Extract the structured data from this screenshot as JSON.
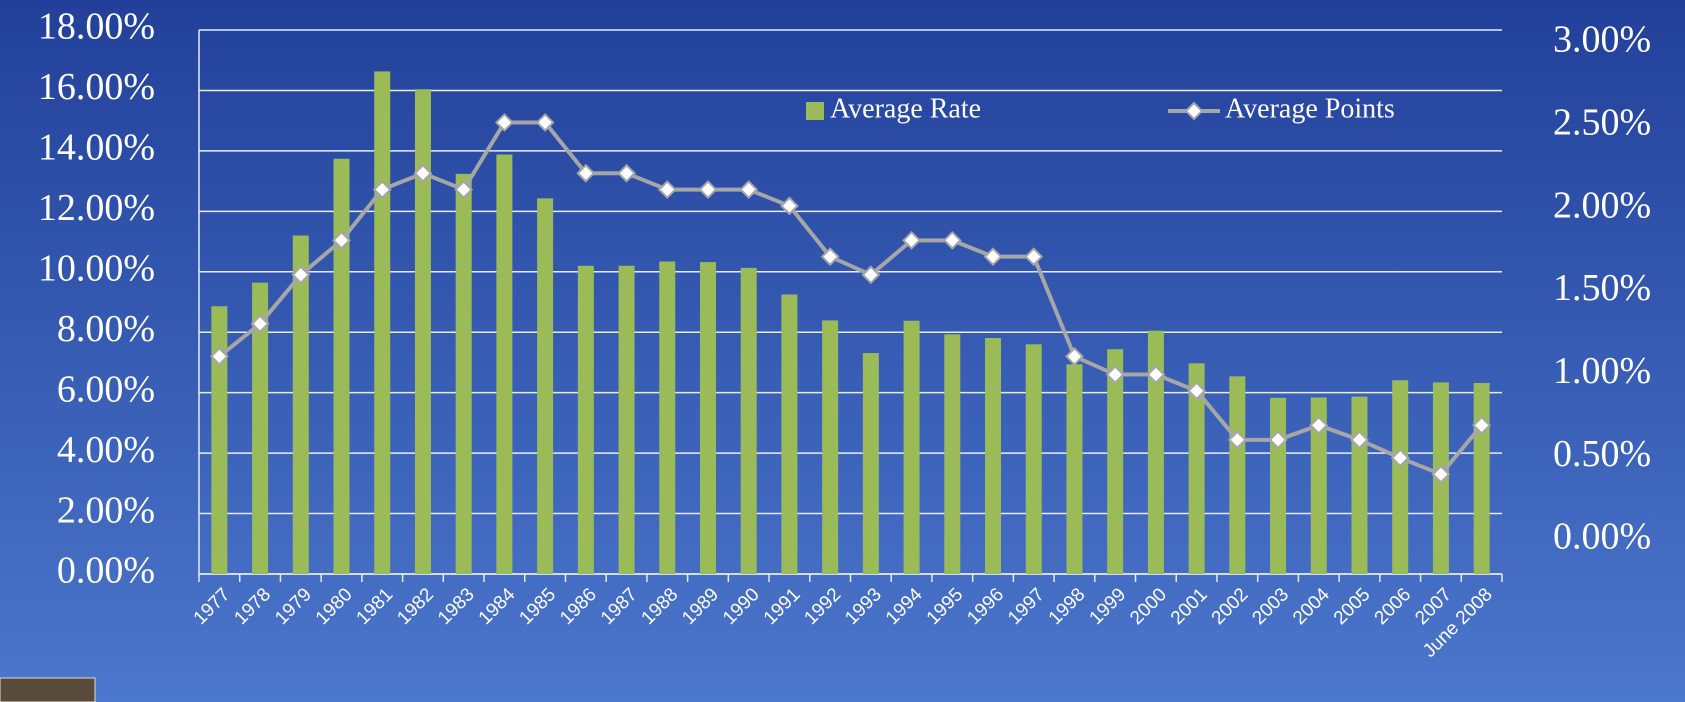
{
  "chart_data": {
    "type": "bar",
    "categories": [
      "1977",
      "1978",
      "1979",
      "1980",
      "1981",
      "1982",
      "1983",
      "1984",
      "1985",
      "1986",
      "1987",
      "1988",
      "1989",
      "1990",
      "1991",
      "1992",
      "1993",
      "1994",
      "1995",
      "1996",
      "1997",
      "1998",
      "1999",
      "2000",
      "2001",
      "2002",
      "2003",
      "2004",
      "2005",
      "2006",
      "2007",
      "June 2008"
    ],
    "series": [
      {
        "name": "Average Rate",
        "color": "#9bbb59",
        "type": "bar",
        "axis": "y",
        "values": [
          8.86,
          9.64,
          11.2,
          13.74,
          16.63,
          16.04,
          13.24,
          13.88,
          12.43,
          10.2,
          10.2,
          10.34,
          10.32,
          10.13,
          9.25,
          8.39,
          7.31,
          8.38,
          7.93,
          7.81,
          7.6,
          6.94,
          7.44,
          8.05,
          6.97,
          6.54,
          5.83,
          5.84,
          5.87,
          6.41,
          6.34,
          6.32
        ]
      },
      {
        "name": "Average Points",
        "color": "#a6a6a6",
        "type": "line",
        "axis": "y2",
        "values": [
          1.2,
          1.38,
          1.65,
          1.84,
          2.12,
          2.21,
          2.12,
          2.49,
          2.49,
          2.21,
          2.21,
          2.12,
          2.12,
          2.12,
          2.03,
          1.75,
          1.65,
          1.84,
          1.84,
          1.75,
          1.75,
          1.2,
          1.1,
          1.1,
          1.01,
          0.74,
          0.74,
          0.82,
          0.74,
          0.64,
          0.55,
          0.82
        ]
      }
    ],
    "ylim": [
      0,
      18
    ],
    "yticks": [
      {
        "value": 0,
        "label": "0.00%"
      },
      {
        "value": 2,
        "label": "2.00%"
      },
      {
        "value": 4,
        "label": "4.00%"
      },
      {
        "value": 6,
        "label": "6.00%"
      },
      {
        "value": 8,
        "label": "8.00%"
      },
      {
        "value": 10,
        "label": "10.00%"
      },
      {
        "value": 12,
        "label": "12.00%"
      },
      {
        "value": 14,
        "label": "14.00%"
      },
      {
        "value": 16,
        "label": "16.00%"
      },
      {
        "value": 18,
        "label": "18.00%"
      }
    ],
    "y2lim": [
      0,
      3
    ],
    "y2ticks": [
      {
        "value": 0,
        "label": "0.00%"
      },
      {
        "value": 0.5,
        "label": "0.50%"
      },
      {
        "value": 1,
        "label": "1.00%"
      },
      {
        "value": 1.5,
        "label": "1.50%"
      },
      {
        "value": 2,
        "label": "2.00%"
      },
      {
        "value": 2.5,
        "label": "2.50%"
      },
      {
        "value": 3,
        "label": "3.00%"
      }
    ],
    "grid": true,
    "legend": "top-right"
  }
}
